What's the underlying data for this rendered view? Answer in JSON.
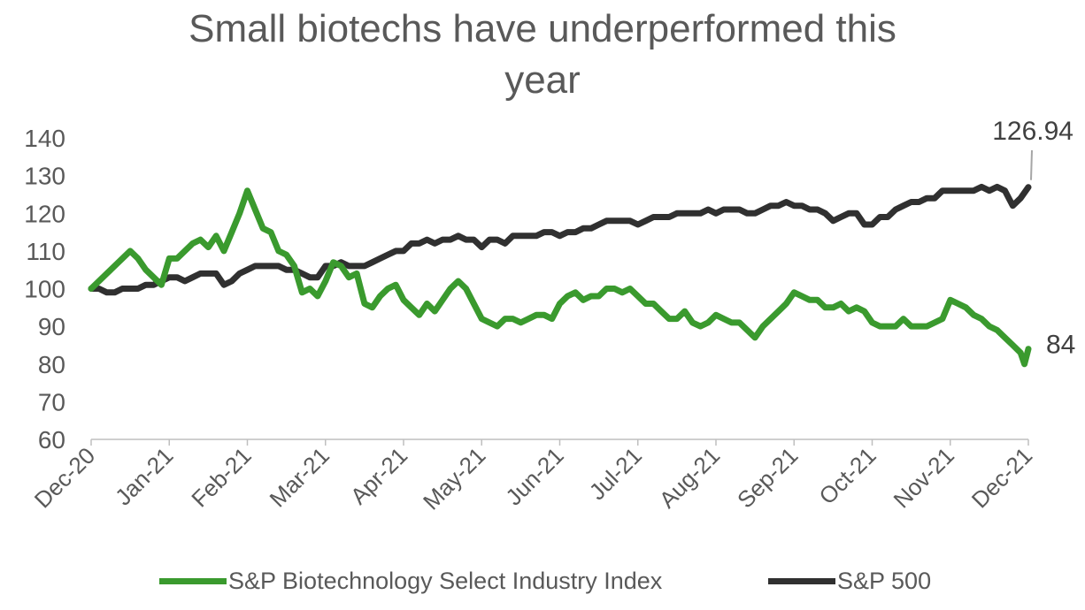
{
  "chart_data": {
    "type": "line",
    "title_lines": [
      "Small biotechs have  underperformed this",
      "year"
    ],
    "xlabel": "",
    "ylabel": "",
    "ylim": [
      60,
      140
    ],
    "yticks": [
      60,
      70,
      80,
      90,
      100,
      110,
      120,
      130,
      140
    ],
    "x_categories": [
      "Dec-20",
      "Jan-21",
      "Feb-21",
      "Mar-21",
      "Apr-21",
      "May-21",
      "Jun-21",
      "Jul-21",
      "Aug-21",
      "Sep-21",
      "Oct-21",
      "Nov-21",
      "Dec-21"
    ],
    "grid": false,
    "legend_position": "bottom",
    "series": [
      {
        "name": "S&P Biotechnology Select Industry Index",
        "color": "#3a9a2e",
        "end_label": "84",
        "points": [
          [
            0,
            100
          ],
          [
            0.1,
            102
          ],
          [
            0.2,
            104
          ],
          [
            0.3,
            106
          ],
          [
            0.4,
            108
          ],
          [
            0.5,
            110
          ],
          [
            0.6,
            108
          ],
          [
            0.7,
            105
          ],
          [
            0.8,
            103
          ],
          [
            0.9,
            101
          ],
          [
            1.0,
            108
          ],
          [
            1.1,
            108
          ],
          [
            1.2,
            110
          ],
          [
            1.3,
            112
          ],
          [
            1.4,
            113
          ],
          [
            1.5,
            111
          ],
          [
            1.6,
            114
          ],
          [
            1.7,
            110
          ],
          [
            1.8,
            115
          ],
          [
            1.9,
            120
          ],
          [
            2.0,
            126
          ],
          [
            2.1,
            121
          ],
          [
            2.2,
            116
          ],
          [
            2.3,
            115
          ],
          [
            2.4,
            110
          ],
          [
            2.5,
            109
          ],
          [
            2.6,
            106
          ],
          [
            2.7,
            99
          ],
          [
            2.8,
            100
          ],
          [
            2.9,
            98
          ],
          [
            3.0,
            102
          ],
          [
            3.1,
            107
          ],
          [
            3.2,
            106
          ],
          [
            3.3,
            103
          ],
          [
            3.4,
            104
          ],
          [
            3.5,
            96
          ],
          [
            3.6,
            95
          ],
          [
            3.7,
            98
          ],
          [
            3.8,
            100
          ],
          [
            3.9,
            101
          ],
          [
            4.0,
            97
          ],
          [
            4.1,
            95
          ],
          [
            4.2,
            93
          ],
          [
            4.3,
            96
          ],
          [
            4.4,
            94
          ],
          [
            4.5,
            97
          ],
          [
            4.6,
            100
          ],
          [
            4.7,
            102
          ],
          [
            4.8,
            100
          ],
          [
            4.9,
            96
          ],
          [
            5.0,
            92
          ],
          [
            5.1,
            91
          ],
          [
            5.2,
            90
          ],
          [
            5.3,
            92
          ],
          [
            5.4,
            92
          ],
          [
            5.5,
            91
          ],
          [
            5.6,
            92
          ],
          [
            5.7,
            93
          ],
          [
            5.8,
            93
          ],
          [
            5.9,
            92
          ],
          [
            6.0,
            96
          ],
          [
            6.1,
            98
          ],
          [
            6.2,
            99
          ],
          [
            6.3,
            97
          ],
          [
            6.4,
            98
          ],
          [
            6.5,
            98
          ],
          [
            6.6,
            100
          ],
          [
            6.7,
            100
          ],
          [
            6.8,
            99
          ],
          [
            6.9,
            100
          ],
          [
            7.0,
            98
          ],
          [
            7.1,
            96
          ],
          [
            7.2,
            96
          ],
          [
            7.3,
            94
          ],
          [
            7.4,
            92
          ],
          [
            7.5,
            92
          ],
          [
            7.6,
            94
          ],
          [
            7.7,
            91
          ],
          [
            7.8,
            90
          ],
          [
            7.9,
            91
          ],
          [
            8.0,
            93
          ],
          [
            8.1,
            92
          ],
          [
            8.2,
            91
          ],
          [
            8.3,
            91
          ],
          [
            8.4,
            89
          ],
          [
            8.5,
            87
          ],
          [
            8.6,
            90
          ],
          [
            8.7,
            92
          ],
          [
            8.8,
            94
          ],
          [
            8.9,
            96
          ],
          [
            9.0,
            99
          ],
          [
            9.1,
            98
          ],
          [
            9.2,
            97
          ],
          [
            9.3,
            97
          ],
          [
            9.4,
            95
          ],
          [
            9.5,
            95
          ],
          [
            9.6,
            96
          ],
          [
            9.7,
            94
          ],
          [
            9.8,
            95
          ],
          [
            9.9,
            94
          ],
          [
            10.0,
            91
          ],
          [
            10.1,
            90
          ],
          [
            10.2,
            90
          ],
          [
            10.3,
            90
          ],
          [
            10.4,
            92
          ],
          [
            10.5,
            90
          ],
          [
            10.6,
            90
          ],
          [
            10.7,
            90
          ],
          [
            10.8,
            91
          ],
          [
            10.9,
            92
          ],
          [
            11.0,
            97
          ],
          [
            11.1,
            96
          ],
          [
            11.2,
            95
          ],
          [
            11.3,
            93
          ],
          [
            11.4,
            92
          ],
          [
            11.5,
            90
          ],
          [
            11.6,
            89
          ],
          [
            11.7,
            87
          ],
          [
            11.8,
            85
          ],
          [
            11.9,
            83
          ],
          [
            11.95,
            80
          ],
          [
            12.0,
            84
          ]
        ]
      },
      {
        "name": "S&P 500",
        "color": "#303030",
        "end_label": "126.94",
        "points": [
          [
            0,
            100
          ],
          [
            0.1,
            100
          ],
          [
            0.2,
            99
          ],
          [
            0.3,
            99
          ],
          [
            0.4,
            100
          ],
          [
            0.5,
            100
          ],
          [
            0.6,
            100
          ],
          [
            0.7,
            101
          ],
          [
            0.8,
            101
          ],
          [
            0.9,
            102
          ],
          [
            1.0,
            103
          ],
          [
            1.1,
            103
          ],
          [
            1.2,
            102
          ],
          [
            1.3,
            103
          ],
          [
            1.4,
            104
          ],
          [
            1.5,
            104
          ],
          [
            1.6,
            104
          ],
          [
            1.7,
            101
          ],
          [
            1.8,
            102
          ],
          [
            1.9,
            104
          ],
          [
            2.0,
            105
          ],
          [
            2.1,
            106
          ],
          [
            2.2,
            106
          ],
          [
            2.3,
            106
          ],
          [
            2.4,
            106
          ],
          [
            2.5,
            105
          ],
          [
            2.6,
            105
          ],
          [
            2.7,
            104
          ],
          [
            2.8,
            103
          ],
          [
            2.9,
            103
          ],
          [
            3.0,
            106
          ],
          [
            3.1,
            106
          ],
          [
            3.2,
            107
          ],
          [
            3.3,
            106
          ],
          [
            3.4,
            106
          ],
          [
            3.5,
            106
          ],
          [
            3.6,
            107
          ],
          [
            3.7,
            108
          ],
          [
            3.8,
            109
          ],
          [
            3.9,
            110
          ],
          [
            4.0,
            110
          ],
          [
            4.1,
            112
          ],
          [
            4.2,
            112
          ],
          [
            4.3,
            113
          ],
          [
            4.4,
            112
          ],
          [
            4.5,
            113
          ],
          [
            4.6,
            113
          ],
          [
            4.7,
            114
          ],
          [
            4.8,
            113
          ],
          [
            4.9,
            113
          ],
          [
            5.0,
            111
          ],
          [
            5.1,
            113
          ],
          [
            5.2,
            113
          ],
          [
            5.3,
            112
          ],
          [
            5.4,
            114
          ],
          [
            5.5,
            114
          ],
          [
            5.6,
            114
          ],
          [
            5.7,
            114
          ],
          [
            5.8,
            115
          ],
          [
            5.9,
            115
          ],
          [
            6.0,
            114
          ],
          [
            6.1,
            115
          ],
          [
            6.2,
            115
          ],
          [
            6.3,
            116
          ],
          [
            6.4,
            116
          ],
          [
            6.5,
            117
          ],
          [
            6.6,
            118
          ],
          [
            6.7,
            118
          ],
          [
            6.8,
            118
          ],
          [
            6.9,
            118
          ],
          [
            7.0,
            117
          ],
          [
            7.1,
            118
          ],
          [
            7.2,
            119
          ],
          [
            7.3,
            119
          ],
          [
            7.4,
            119
          ],
          [
            7.5,
            120
          ],
          [
            7.6,
            120
          ],
          [
            7.7,
            120
          ],
          [
            7.8,
            120
          ],
          [
            7.9,
            121
          ],
          [
            8.0,
            120
          ],
          [
            8.1,
            121
          ],
          [
            8.2,
            121
          ],
          [
            8.3,
            121
          ],
          [
            8.4,
            120
          ],
          [
            8.5,
            120
          ],
          [
            8.6,
            121
          ],
          [
            8.7,
            122
          ],
          [
            8.8,
            122
          ],
          [
            8.9,
            123
          ],
          [
            9.0,
            122
          ],
          [
            9.1,
            122
          ],
          [
            9.2,
            121
          ],
          [
            9.3,
            121
          ],
          [
            9.4,
            120
          ],
          [
            9.5,
            118
          ],
          [
            9.6,
            119
          ],
          [
            9.7,
            120
          ],
          [
            9.8,
            120
          ],
          [
            9.9,
            117
          ],
          [
            10.0,
            117
          ],
          [
            10.1,
            119
          ],
          [
            10.2,
            119
          ],
          [
            10.3,
            121
          ],
          [
            10.4,
            122
          ],
          [
            10.5,
            123
          ],
          [
            10.6,
            123
          ],
          [
            10.7,
            124
          ],
          [
            10.8,
            124
          ],
          [
            10.9,
            126
          ],
          [
            11.0,
            126
          ],
          [
            11.1,
            126
          ],
          [
            11.2,
            126
          ],
          [
            11.3,
            126
          ],
          [
            11.4,
            127
          ],
          [
            11.5,
            126
          ],
          [
            11.6,
            127
          ],
          [
            11.7,
            126
          ],
          [
            11.75,
            124
          ],
          [
            11.8,
            122
          ],
          [
            11.9,
            124
          ],
          [
            12.0,
            126.94
          ]
        ]
      }
    ]
  }
}
